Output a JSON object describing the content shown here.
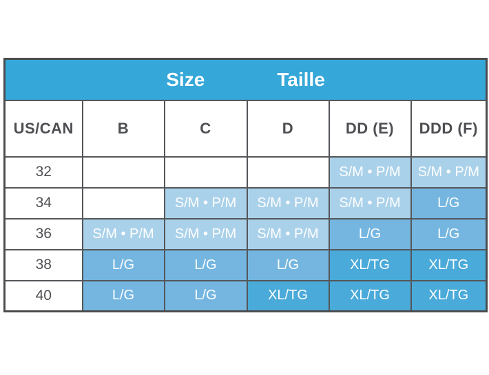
{
  "chart_data": {
    "type": "table",
    "title": {
      "en": "Size",
      "fr": "Taille"
    },
    "columns": [
      "US/CAN",
      "B",
      "C",
      "D",
      "DD (E)",
      "DDD (F)"
    ],
    "rows": [
      {
        "us_can": "32",
        "cells": [
          {
            "text": "",
            "tone": "none"
          },
          {
            "text": "",
            "tone": "none"
          },
          {
            "text": "",
            "tone": "none"
          },
          {
            "text": "S/M • P/M",
            "tone": "light"
          },
          {
            "text": "S/M • P/M",
            "tone": "light"
          }
        ]
      },
      {
        "us_can": "34",
        "cells": [
          {
            "text": "",
            "tone": "none"
          },
          {
            "text": "S/M • P/M",
            "tone": "light"
          },
          {
            "text": "S/M • P/M",
            "tone": "light"
          },
          {
            "text": "S/M • P/M",
            "tone": "light"
          },
          {
            "text": "L/G",
            "tone": "medium"
          }
        ]
      },
      {
        "us_can": "36",
        "cells": [
          {
            "text": "S/M • P/M",
            "tone": "light"
          },
          {
            "text": "S/M • P/M",
            "tone": "light"
          },
          {
            "text": "S/M • P/M",
            "tone": "light"
          },
          {
            "text": "L/G",
            "tone": "medium"
          },
          {
            "text": "L/G",
            "tone": "medium"
          }
        ]
      },
      {
        "us_can": "38",
        "cells": [
          {
            "text": "L/G",
            "tone": "medium"
          },
          {
            "text": "L/G",
            "tone": "medium"
          },
          {
            "text": "L/G",
            "tone": "medium"
          },
          {
            "text": "XL/TG",
            "tone": "dark"
          },
          {
            "text": "XL/TG",
            "tone": "dark"
          }
        ]
      },
      {
        "us_can": "40",
        "cells": [
          {
            "text": "L/G",
            "tone": "medium"
          },
          {
            "text": "L/G",
            "tone": "medium"
          },
          {
            "text": "XL/TG",
            "tone": "dark"
          },
          {
            "text": "XL/TG",
            "tone": "dark"
          },
          {
            "text": "XL/TG",
            "tone": "dark"
          }
        ]
      }
    ],
    "legend": {
      "light": "S/M • P/M",
      "medium": "L/G",
      "dark": "XL/TG"
    }
  },
  "colors": {
    "header-bg": "#35a7d8",
    "cell-light": "#aad1ea",
    "cell-medium": "#74b6e0",
    "cell-dark": "#4aaad9",
    "border-line": "#55565a",
    "border-outer": "#4b4c4e",
    "text-dark": "#4d4e52",
    "cell-text": "#ffffff"
  }
}
